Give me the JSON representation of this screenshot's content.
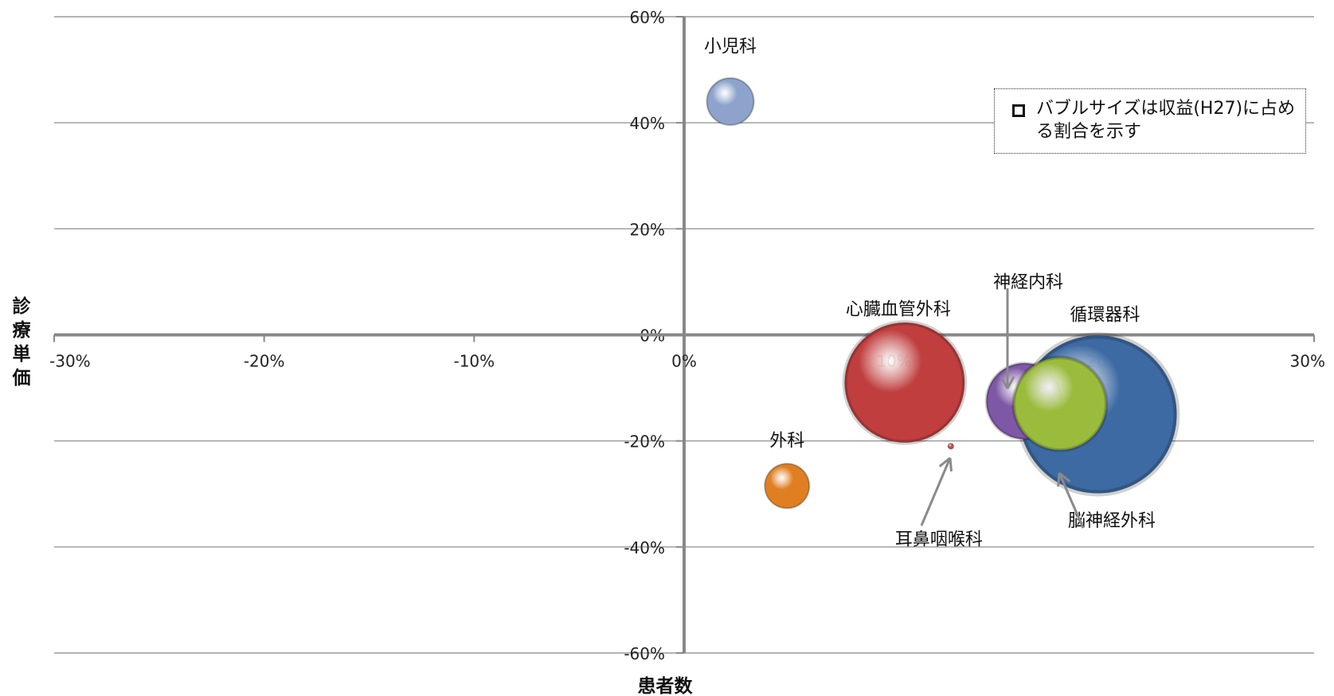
{
  "chart_data": {
    "type": "bubble",
    "xlabel": "患者数",
    "ylabel": "診療単価",
    "xlim": [
      -0.3,
      0.3
    ],
    "ylim": [
      -0.6,
      0.6
    ],
    "x_ticks": [
      -0.3,
      -0.2,
      -0.1,
      0,
      0.1,
      0.2,
      0.3
    ],
    "y_ticks": [
      -0.6,
      -0.4,
      -0.2,
      0,
      0.2,
      0.4,
      0.6
    ],
    "x_tick_labels": [
      "-30%",
      "-20%",
      "-10%",
      "0%",
      "10%",
      "20%",
      "30%"
    ],
    "y_tick_labels": [
      "-60%",
      "-40%",
      "-20%",
      "0%",
      "20%",
      "40%",
      "60%"
    ],
    "grid": "horizontal",
    "legend_note": "バブルサイズは収益(H27)に占める割合を示す",
    "points": [
      {
        "name": "小児科",
        "x": 0.022,
        "y": 0.44,
        "size": 0.02,
        "color": "#8da3cc"
      },
      {
        "name": "外科",
        "x": 0.049,
        "y": -0.285,
        "size": 0.018,
        "color": "#e07e22"
      },
      {
        "name": "心臓血管外科",
        "x": 0.105,
        "y": -0.09,
        "size": 0.13,
        "color": "#c03e3e"
      },
      {
        "name": "耳鼻咽喉科",
        "x": 0.127,
        "y": -0.21,
        "size": 0.0003,
        "color": "#c0504d"
      },
      {
        "name": "循環器科",
        "x": 0.197,
        "y": -0.15,
        "size": 0.225,
        "color": "#3d6aa3"
      },
      {
        "name": "神経内科",
        "x": 0.162,
        "y": -0.125,
        "size": 0.052,
        "color": "#7e57a6"
      },
      {
        "name": "脳神経外科",
        "x": 0.179,
        "y": -0.13,
        "size": 0.078,
        "color": "#9bbb3d"
      }
    ]
  }
}
